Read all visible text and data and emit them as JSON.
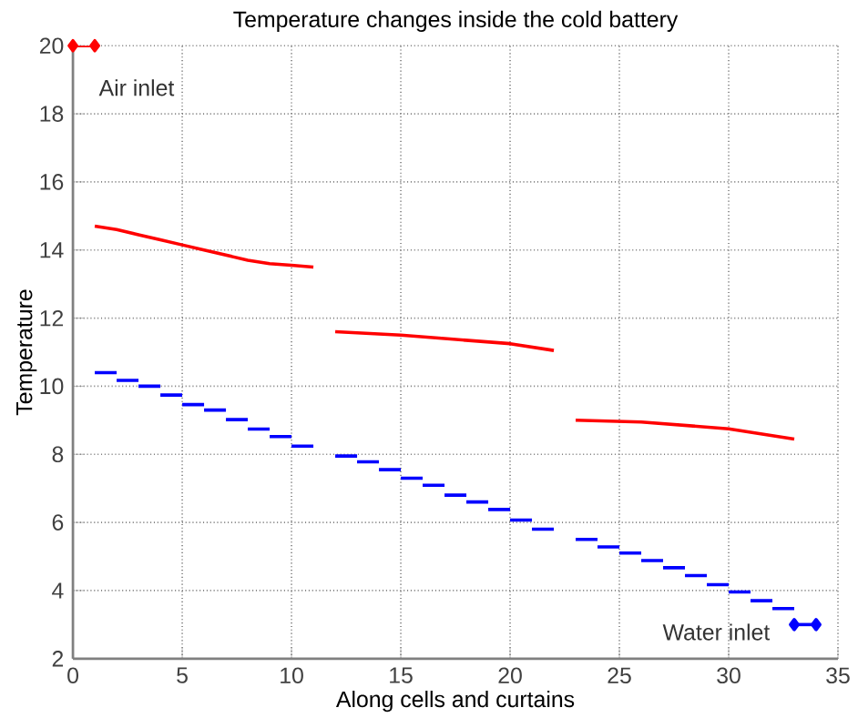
{
  "chart_data": {
    "type": "line",
    "title": "Temperature changes inside the cold battery",
    "xlabel": "Along cells and curtains",
    "ylabel": "Temperature",
    "xlim": [
      0,
      35
    ],
    "ylim": [
      2,
      20
    ],
    "xticks": [
      0,
      5,
      10,
      15,
      20,
      25,
      30,
      35
    ],
    "yticks": [
      2,
      4,
      6,
      8,
      10,
      12,
      14,
      16,
      18,
      20
    ],
    "grid": true,
    "annotations": [
      "Air inlet",
      "Water inlet"
    ],
    "series": [
      {
        "color": "#ff0000",
        "marker": "diamond",
        "x": [
          0,
          1
        ],
        "values": [
          20,
          20
        ]
      },
      {
        "color": "#ff0000",
        "marker": "none",
        "x": [
          1,
          2,
          3,
          4,
          5,
          6,
          7,
          8,
          9,
          10,
          11
        ],
        "values": [
          14.7,
          14.6,
          14.45,
          14.3,
          14.15,
          14.0,
          13.85,
          13.7,
          13.6,
          13.55,
          13.5
        ]
      },
      {
        "color": "#ff0000",
        "marker": "none",
        "x": [
          12,
          15,
          17,
          20,
          22
        ],
        "values": [
          11.6,
          11.5,
          11.4,
          11.25,
          11.05
        ]
      },
      {
        "color": "#ff0000",
        "marker": "none",
        "x": [
          23,
          26,
          30,
          33
        ],
        "values": [
          9.0,
          8.95,
          8.75,
          8.45
        ]
      },
      {
        "type": "step",
        "color": "#0000ff",
        "marker": "none",
        "x": [
          1,
          2,
          3,
          4,
          5,
          6,
          7,
          8,
          9,
          10,
          11
        ],
        "values": [
          10.4,
          10.17,
          10.0,
          9.74,
          9.46,
          9.3,
          9.02,
          8.74,
          8.52,
          8.24,
          8.24
        ]
      },
      {
        "type": "step",
        "color": "#0000ff",
        "marker": "none",
        "x": [
          12,
          13,
          14,
          15,
          16,
          17,
          18,
          19,
          20,
          21,
          22
        ],
        "values": [
          7.95,
          7.78,
          7.55,
          7.3,
          7.09,
          6.8,
          6.6,
          6.38,
          6.07,
          5.8,
          5.8
        ]
      },
      {
        "type": "step",
        "color": "#0000ff",
        "marker": "none",
        "x": [
          23,
          24,
          25,
          26,
          27,
          28,
          29,
          30,
          31,
          32,
          33
        ],
        "values": [
          5.5,
          5.28,
          5.1,
          4.88,
          4.67,
          4.44,
          4.17,
          3.96,
          3.7,
          3.47,
          3.47
        ]
      },
      {
        "color": "#0000ff",
        "marker": "diamond",
        "x": [
          33,
          34
        ],
        "values": [
          3,
          3
        ]
      }
    ]
  }
}
